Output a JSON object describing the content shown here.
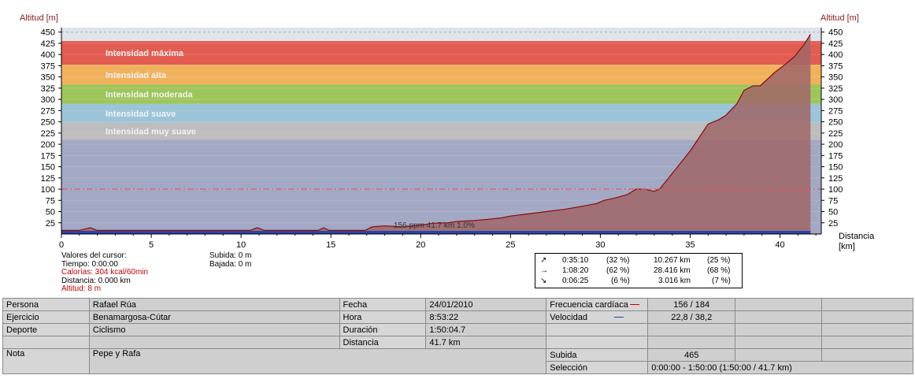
{
  "chart_data": {
    "type": "area",
    "ylabel_left": "Altitud [m]",
    "ylabel_right": "Altitud [m]",
    "xlabel": "Distancia",
    "xunit": "[km]",
    "xlim": [
      0,
      42.3
    ],
    "ylim": [
      0,
      460
    ],
    "xticks": [
      0,
      5,
      10,
      15,
      20,
      25,
      30,
      35,
      40
    ],
    "yticks": [
      25,
      50,
      75,
      100,
      125,
      150,
      175,
      200,
      225,
      250,
      275,
      300,
      325,
      350,
      375,
      400,
      425,
      450
    ],
    "zones": [
      {
        "label": "Intensidad máxima",
        "from": 377,
        "to": 430,
        "color": "#e25c52"
      },
      {
        "label": "Intensidad alta",
        "from": 333,
        "to": 377,
        "color": "#f1b15c"
      },
      {
        "label": "Intensidad moderada",
        "from": 290,
        "to": 333,
        "color": "#9ec55a"
      },
      {
        "label": "Intensidad suave",
        "from": 248,
        "to": 290,
        "color": "#9cc4d8"
      },
      {
        "label": "Intensidad muy suave",
        "from": 210,
        "to": 248,
        "color": "#bdbdbd"
      }
    ],
    "below_zone_color": "#a3a8c4",
    "upper_band_color": "#dfe4ea",
    "dashed_line_value": 450,
    "reference_line_value": 100,
    "reference_line_color": "#e85050",
    "altitude_fill_color": "#a06668",
    "altitude_line_color": "#8a0c0c",
    "speed_bar_color": "#2a44a8",
    "annotation": "156 ppm 41.7 km 1.0%",
    "series": [
      {
        "name": "Altitud",
        "x": [
          0,
          1.0,
          1.6,
          2.0,
          10.5,
          10.9,
          11.3,
          14.3,
          14.6,
          14.9,
          16.9,
          17.3,
          18.0,
          19.0,
          20.0,
          20.7,
          21.5,
          22.0,
          23.0,
          23.8,
          24.5,
          25.0,
          26.0,
          27.0,
          28.0,
          29.0,
          29.8,
          30.2,
          30.8,
          31.5,
          32.0,
          32.5,
          33.0,
          33.3,
          33.6,
          34.0,
          34.5,
          35.0,
          35.5,
          36.0,
          36.6,
          37.0,
          37.6,
          38.0,
          38.5,
          38.9,
          39.3,
          39.7,
          40.2,
          40.8,
          41.3,
          41.7
        ],
        "y": [
          8,
          8,
          14,
          8,
          8,
          14,
          8,
          8,
          14,
          8,
          8,
          16,
          18,
          16,
          20,
          24,
          25,
          28,
          30,
          33,
          36,
          40,
          45,
          50,
          55,
          62,
          68,
          75,
          80,
          88,
          100,
          100,
          95,
          100,
          115,
          135,
          160,
          185,
          215,
          245,
          255,
          265,
          290,
          320,
          330,
          330,
          345,
          360,
          375,
          395,
          420,
          445
        ]
      }
    ]
  },
  "cursor": {
    "title": "Valores del cursor:",
    "time": "Tiempo: 0:00:00",
    "calories": "Calorías: 304 kcal/60min",
    "distance": "Distancia: 0.000 km",
    "altitude": "Altitud: 8 m"
  },
  "climb": {
    "up": "Subida: 0 m",
    "down": "Bajada: 0 m"
  },
  "stats": [
    {
      "arrow": "↗",
      "time": "0:35:10",
      "pct_time": "(32 %)",
      "dist": "10.267 km",
      "pct_dist": "(25 %)"
    },
    {
      "arrow": "→",
      "time": "1:08:20",
      "pct_time": "(62 %)",
      "dist": "28.416 km",
      "pct_dist": "(68 %)"
    },
    {
      "arrow": "↘",
      "time": "0:06:25",
      "pct_time": "(6 %)",
      "dist": "3.016 km",
      "pct_dist": "(7 %)"
    }
  ],
  "info": {
    "persona_label": "Persona",
    "persona": "Rafael Rúa",
    "ejercicio_label": "Ejercicio",
    "ejercicio": "Benamargosa-Cútar",
    "deporte_label": "Deporte",
    "deporte": "Ciclismo",
    "nota_label": "Nota",
    "nota": "Pepe y Rafa",
    "fecha_label": "Fecha",
    "fecha": "24/01/2010",
    "hora_label": "Hora",
    "hora": "8:53:22",
    "duracion_label": "Duración",
    "duracion": "1:50:04.7",
    "distancia_label": "Distancia",
    "distancia": "41.7 km",
    "fc_label": "Frecuencia cardíaca",
    "fc": "156 / 184",
    "fc_color": "#c00000",
    "vel_label": "Velocidad",
    "vel": "22,8 / 38,2",
    "vel_color": "#2a44a8",
    "subida_label": "Subida",
    "subida": "465",
    "seleccion_label": "Selección",
    "seleccion": "0:00:00 - 1:50:00 (1:50:00 / 41.7 km)"
  }
}
